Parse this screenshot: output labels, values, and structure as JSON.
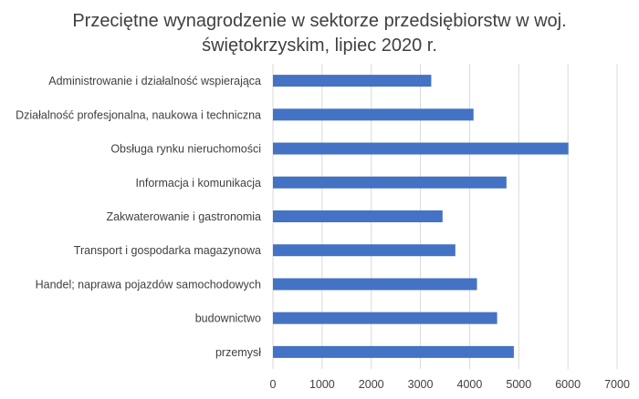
{
  "chart_data": {
    "type": "bar",
    "orientation": "horizontal",
    "title_lines": [
      "Przeciętne wynagrodzenie w sektorze przedsiębiorstw w woj.",
      "świętokrzyskim, lipiec 2020 r."
    ],
    "categories": [
      "Administrowanie i działalność wspierająca",
      "Działalność profesjonalna, naukowa i techniczna",
      "Obsługa rynku nieruchomości",
      "Informacja i komunikacja",
      "Zakwaterowanie i gastronomia",
      "Transport i gospodarka magazynowa",
      "Handel; naprawa pojazdów samochodowych",
      "budownictwo",
      "przemysł"
    ],
    "values": [
      3220,
      4080,
      6010,
      4750,
      3450,
      3710,
      4150,
      4560,
      4900
    ],
    "xlim": [
      0,
      7000
    ],
    "xticks": [
      "0",
      "1000",
      "2000",
      "3000",
      "4000",
      "5000",
      "6000",
      "7000"
    ],
    "grid": "vertical",
    "legend": "none",
    "colors": {
      "bar": "#4472C4",
      "grid": "#d9d9d9",
      "text": "#404040"
    }
  }
}
